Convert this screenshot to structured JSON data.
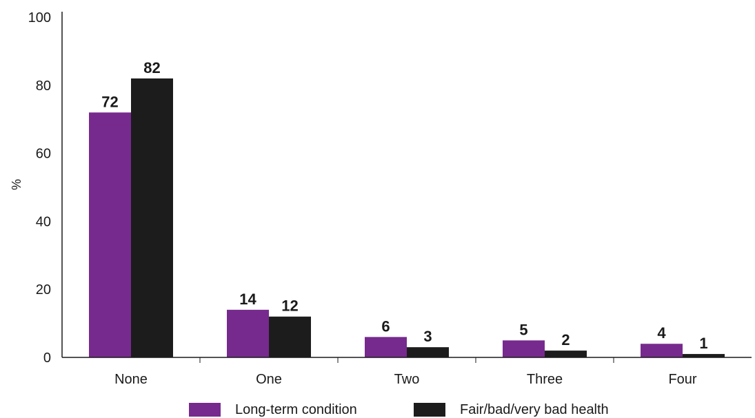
{
  "chart_data": {
    "type": "bar",
    "title": "",
    "xlabel": "",
    "ylabel": "%",
    "ylim": [
      0,
      100
    ],
    "yticks": [
      0,
      20,
      40,
      60,
      80,
      100
    ],
    "grid": false,
    "legend_position": "bottom",
    "categories": [
      "None",
      "One",
      "Two",
      "Three",
      "Four"
    ],
    "series": [
      {
        "name": "Long-term condition",
        "color": "#772a8e",
        "values": [
          72,
          14,
          6,
          5,
          4
        ]
      },
      {
        "name": "Fair/bad/very bad health",
        "color": "#1c1c1c",
        "values": [
          82,
          12,
          3,
          2,
          1
        ]
      }
    ]
  }
}
